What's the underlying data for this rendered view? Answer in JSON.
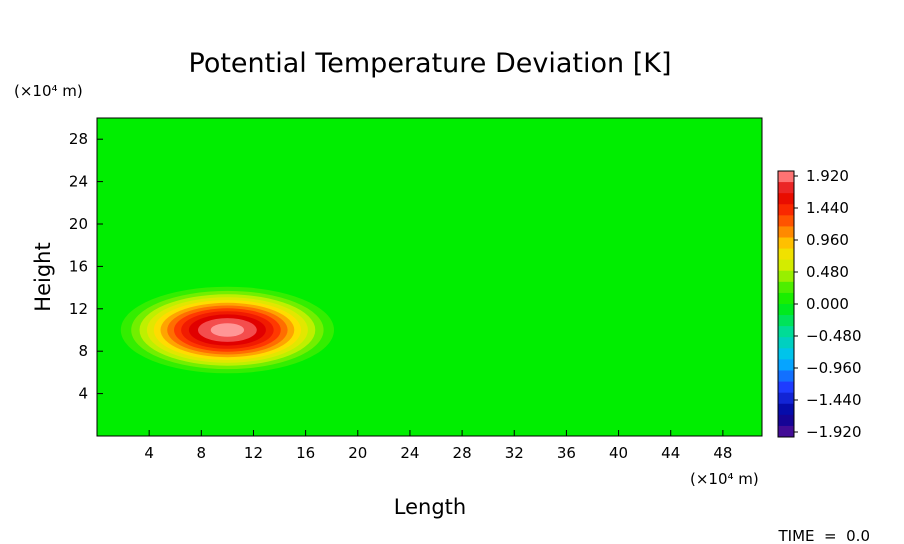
{
  "chart_data": {
    "type": "heatmap",
    "title": "Potential Temperature Deviation [K]",
    "xlabel": "Length",
    "ylabel": "Height",
    "x_unit": "(×10⁴ m)",
    "y_unit": "(×10⁴ m)",
    "xlim": [
      0,
      51
    ],
    "ylim": [
      0,
      30
    ],
    "x_ticks": [
      4,
      8,
      12,
      16,
      20,
      24,
      28,
      32,
      36,
      40,
      44,
      48
    ],
    "y_ticks": [
      4,
      8,
      12,
      16,
      20,
      24,
      28
    ],
    "field": {
      "shape": "elliptical warm bubble",
      "center": [
        10,
        10
      ],
      "semi_axis_x": 10,
      "semi_axis_y": 5,
      "max_value": 2.0,
      "background_value": 0.0
    },
    "colorbar": {
      "min": -1.92,
      "max": 1.92,
      "step": 0.16,
      "labels": [
        "1.920",
        "1.440",
        "0.960",
        "0.480",
        "0.000",
        "−0.480",
        "−0.960",
        "−1.440",
        "−1.920"
      ]
    },
    "annotation": "TIME  =  0.0",
    "grid": false,
    "legend": "right colorbar"
  }
}
